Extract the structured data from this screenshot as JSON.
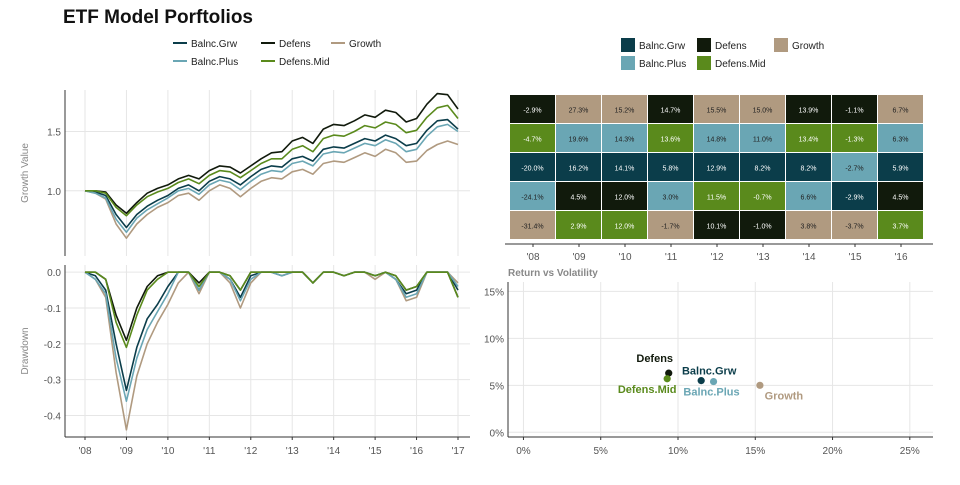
{
  "title": "ETF Model Porftolios",
  "colors": {
    "Balnc.Grw": "#0b3d4a",
    "Defens": "#111a0c",
    "Growth": "#b09a80",
    "Balnc.Plus": "#6aa6b4",
    "Defens.Mid": "#5a8a1c",
    "grid": "#e6e6e6",
    "axis": "#555555"
  },
  "legend_left": [
    "Balnc.Grw",
    "Defens",
    "Growth",
    "Balnc.Plus",
    "Defens.Mid"
  ],
  "legend_right": [
    "Balnc.Grw",
    "Defens",
    "Growth",
    "Balnc.Plus",
    "Defens.Mid"
  ],
  "chart_data": [
    {
      "type": "line",
      "name": "growth",
      "ylabel": "Growth Value",
      "ylim": [
        0.45,
        1.85
      ],
      "yticks": [
        1.0,
        1.5
      ],
      "ytick_labels": [
        "1.0",
        "1.5"
      ],
      "x_start": 2008.0,
      "x_end": 2017.0,
      "series": [
        {
          "name": "Balnc.Grw",
          "values": [
            1.0,
            0.99,
            0.96,
            0.8,
            0.69,
            0.8,
            0.87,
            0.92,
            0.96,
            1.02,
            1.05,
            1.0,
            1.08,
            1.12,
            1.1,
            1.05,
            1.12,
            1.18,
            1.21,
            1.2,
            1.27,
            1.29,
            1.25,
            1.35,
            1.37,
            1.36,
            1.4,
            1.44,
            1.42,
            1.47,
            1.44,
            1.38,
            1.4,
            1.51,
            1.59,
            1.6,
            1.52
          ]
        },
        {
          "name": "Defens",
          "values": [
            1.0,
            1.0,
            0.99,
            0.88,
            0.81,
            0.9,
            0.98,
            1.02,
            1.05,
            1.1,
            1.13,
            1.1,
            1.17,
            1.21,
            1.2,
            1.15,
            1.21,
            1.27,
            1.32,
            1.33,
            1.42,
            1.45,
            1.4,
            1.52,
            1.56,
            1.55,
            1.59,
            1.64,
            1.62,
            1.68,
            1.66,
            1.58,
            1.61,
            1.73,
            1.82,
            1.81,
            1.69
          ]
        },
        {
          "name": "Growth",
          "values": [
            1.0,
            0.98,
            0.93,
            0.72,
            0.6,
            0.72,
            0.8,
            0.86,
            0.9,
            0.96,
            0.98,
            0.92,
            1.0,
            1.05,
            1.02,
            0.95,
            1.02,
            1.08,
            1.11,
            1.1,
            1.16,
            1.18,
            1.14,
            1.23,
            1.25,
            1.24,
            1.28,
            1.32,
            1.29,
            1.35,
            1.32,
            1.24,
            1.25,
            1.34,
            1.39,
            1.42,
            1.39
          ]
        },
        {
          "name": "Balnc.Plus",
          "values": [
            1.0,
            0.98,
            0.94,
            0.76,
            0.65,
            0.77,
            0.84,
            0.89,
            0.94,
            1.0,
            1.02,
            0.97,
            1.05,
            1.09,
            1.07,
            1.01,
            1.08,
            1.14,
            1.17,
            1.16,
            1.23,
            1.25,
            1.21,
            1.31,
            1.33,
            1.32,
            1.36,
            1.4,
            1.38,
            1.43,
            1.4,
            1.33,
            1.35,
            1.46,
            1.54,
            1.56,
            1.5
          ]
        },
        {
          "name": "Defens.Mid",
          "values": [
            1.0,
            1.0,
            0.98,
            0.86,
            0.79,
            0.88,
            0.95,
            0.99,
            1.02,
            1.07,
            1.1,
            1.06,
            1.13,
            1.17,
            1.16,
            1.11,
            1.17,
            1.23,
            1.27,
            1.27,
            1.35,
            1.38,
            1.33,
            1.44,
            1.47,
            1.46,
            1.5,
            1.55,
            1.53,
            1.58,
            1.56,
            1.49,
            1.51,
            1.62,
            1.7,
            1.72,
            1.61
          ]
        }
      ]
    },
    {
      "type": "line",
      "name": "drawdown",
      "ylabel": "Drawdown",
      "ylim": [
        -0.46,
        0.02
      ],
      "yticks": [
        0.0,
        -0.1,
        -0.2,
        -0.3,
        -0.4
      ],
      "ytick_labels": [
        "0.0",
        "-0.1",
        "-0.2",
        "-0.3",
        "-0.4"
      ],
      "x_start": 2008.0,
      "x_end": 2017.0,
      "xticks": [
        "'08",
        "'09",
        "'10",
        "'11",
        "'12",
        "'13",
        "'14",
        "'15",
        "'16",
        "'17"
      ],
      "series": [
        {
          "name": "Balnc.Grw",
          "values": [
            0.0,
            -0.01,
            -0.05,
            -0.2,
            -0.33,
            -0.21,
            -0.13,
            -0.09,
            -0.04,
            0.0,
            0.0,
            -0.05,
            0.0,
            0.0,
            -0.02,
            -0.07,
            -0.01,
            0.0,
            0.0,
            -0.01,
            0.0,
            0.0,
            -0.03,
            0.0,
            0.0,
            -0.01,
            0.0,
            0.0,
            -0.01,
            0.0,
            -0.02,
            -0.06,
            -0.05,
            0.0,
            0.0,
            0.0,
            -0.05
          ]
        },
        {
          "name": "Defens",
          "values": [
            0.0,
            0.0,
            -0.02,
            -0.12,
            -0.19,
            -0.1,
            -0.04,
            -0.01,
            0.0,
            0.0,
            0.0,
            -0.03,
            0.0,
            0.0,
            -0.01,
            -0.05,
            0.0,
            0.0,
            0.0,
            0.0,
            0.0,
            0.0,
            -0.03,
            0.0,
            0.0,
            -0.01,
            0.0,
            0.0,
            -0.01,
            0.0,
            -0.01,
            -0.05,
            -0.04,
            0.0,
            0.0,
            0.0,
            -0.07
          ]
        },
        {
          "name": "Growth",
          "values": [
            0.0,
            -0.02,
            -0.07,
            -0.28,
            -0.44,
            -0.29,
            -0.2,
            -0.14,
            -0.09,
            -0.03,
            0.0,
            -0.06,
            0.0,
            0.0,
            -0.03,
            -0.1,
            -0.03,
            0.0,
            0.0,
            -0.01,
            0.0,
            0.0,
            -0.03,
            0.0,
            0.0,
            -0.01,
            0.0,
            0.0,
            -0.02,
            0.0,
            -0.02,
            -0.08,
            -0.07,
            0.0,
            0.0,
            0.0,
            -0.03
          ]
        },
        {
          "name": "Balnc.Plus",
          "values": [
            0.0,
            -0.02,
            -0.06,
            -0.24,
            -0.36,
            -0.24,
            -0.16,
            -0.11,
            -0.06,
            0.0,
            0.0,
            -0.05,
            0.0,
            0.0,
            -0.02,
            -0.08,
            -0.02,
            0.0,
            0.0,
            -0.01,
            0.0,
            0.0,
            -0.03,
            0.0,
            0.0,
            -0.01,
            0.0,
            0.0,
            -0.01,
            0.0,
            -0.02,
            -0.07,
            -0.06,
            0.0,
            0.0,
            0.0,
            -0.04
          ]
        },
        {
          "name": "Defens.Mid",
          "values": [
            0.0,
            0.0,
            -0.02,
            -0.14,
            -0.21,
            -0.12,
            -0.05,
            -0.02,
            0.0,
            0.0,
            0.0,
            -0.04,
            0.0,
            0.0,
            -0.01,
            -0.05,
            0.0,
            0.0,
            0.0,
            0.0,
            0.0,
            0.0,
            -0.03,
            0.0,
            0.0,
            -0.01,
            0.0,
            0.0,
            -0.01,
            0.0,
            -0.01,
            -0.05,
            -0.04,
            0.0,
            0.0,
            0.0,
            -0.07
          ]
        }
      ]
    },
    {
      "type": "heatmap",
      "name": "annual-returns",
      "columns": [
        "'08",
        "'09",
        "'10",
        "'11",
        "'12",
        "'13",
        "'14",
        "'15",
        "'16"
      ],
      "rows": [
        [
          {
            "v": "-2.9%",
            "s": "Defens"
          },
          {
            "v": "27.3%",
            "s": "Growth"
          },
          {
            "v": "15.2%",
            "s": "Growth"
          },
          {
            "v": "14.7%",
            "s": "Defens"
          },
          {
            "v": "15.5%",
            "s": "Growth"
          },
          {
            "v": "15.0%",
            "s": "Growth"
          },
          {
            "v": "13.9%",
            "s": "Defens"
          },
          {
            "v": "-1.1%",
            "s": "Defens"
          },
          {
            "v": "6.7%",
            "s": "Growth"
          }
        ],
        [
          {
            "v": "-4.7%",
            "s": "Defens.Mid"
          },
          {
            "v": "19.6%",
            "s": "Balnc.Plus"
          },
          {
            "v": "14.3%",
            "s": "Balnc.Plus"
          },
          {
            "v": "13.6%",
            "s": "Defens.Mid"
          },
          {
            "v": "14.8%",
            "s": "Balnc.Plus"
          },
          {
            "v": "11.0%",
            "s": "Balnc.Plus"
          },
          {
            "v": "13.4%",
            "s": "Defens.Mid"
          },
          {
            "v": "-1.3%",
            "s": "Defens.Mid"
          },
          {
            "v": "6.3%",
            "s": "Balnc.Plus"
          }
        ],
        [
          {
            "v": "-20.0%",
            "s": "Balnc.Grw"
          },
          {
            "v": "16.2%",
            "s": "Balnc.Grw"
          },
          {
            "v": "14.1%",
            "s": "Balnc.Grw"
          },
          {
            "v": "5.8%",
            "s": "Balnc.Grw"
          },
          {
            "v": "12.9%",
            "s": "Balnc.Grw"
          },
          {
            "v": "8.2%",
            "s": "Balnc.Grw"
          },
          {
            "v": "8.2%",
            "s": "Balnc.Grw"
          },
          {
            "v": "-2.7%",
            "s": "Balnc.Plus"
          },
          {
            "v": "5.9%",
            "s": "Balnc.Grw"
          }
        ],
        [
          {
            "v": "-24.1%",
            "s": "Balnc.Plus"
          },
          {
            "v": "4.5%",
            "s": "Defens"
          },
          {
            "v": "12.0%",
            "s": "Defens"
          },
          {
            "v": "3.0%",
            "s": "Balnc.Plus"
          },
          {
            "v": "11.5%",
            "s": "Defens.Mid"
          },
          {
            "v": "-0.7%",
            "s": "Defens.Mid"
          },
          {
            "v": "6.6%",
            "s": "Balnc.Plus"
          },
          {
            "v": "-2.9%",
            "s": "Balnc.Grw"
          },
          {
            "v": "4.5%",
            "s": "Defens"
          }
        ],
        [
          {
            "v": "-31.4%",
            "s": "Growth"
          },
          {
            "v": "2.9%",
            "s": "Defens.Mid"
          },
          {
            "v": "12.0%",
            "s": "Defens.Mid"
          },
          {
            "v": "-1.7%",
            "s": "Growth"
          },
          {
            "v": "10.1%",
            "s": "Defens"
          },
          {
            "v": "-1.0%",
            "s": "Defens"
          },
          {
            "v": "3.8%",
            "s": "Growth"
          },
          {
            "v": "-3.7%",
            "s": "Growth"
          },
          {
            "v": "3.7%",
            "s": "Defens.Mid"
          }
        ]
      ]
    },
    {
      "type": "scatter",
      "name": "return-vs-volatility",
      "title": "Return vs Volatility",
      "xlim": [
        -0.01,
        0.265
      ],
      "ylim": [
        -0.005,
        0.16
      ],
      "xticks": [
        0,
        0.05,
        0.1,
        0.15,
        0.2,
        0.25
      ],
      "xtick_labels": [
        "0%",
        "5%",
        "10%",
        "15%",
        "20%",
        "25%"
      ],
      "yticks": [
        0,
        0.05,
        0.1,
        0.15
      ],
      "ytick_labels": [
        "0%",
        "5%",
        "10%",
        "15%"
      ],
      "points": [
        {
          "name": "Defens",
          "label": "Defens",
          "x": 0.094,
          "y": 0.063
        },
        {
          "name": "Defens.Mid",
          "label": "Defens.Mid",
          "x": 0.093,
          "y": 0.057
        },
        {
          "name": "Balnc.Grw",
          "label": "Balnc.Grw",
          "x": 0.115,
          "y": 0.055
        },
        {
          "name": "Balnc.Plus",
          "label": "Balnc.Plus",
          "x": 0.123,
          "y": 0.054
        },
        {
          "name": "Growth",
          "label": "Growth",
          "x": 0.153,
          "y": 0.05
        }
      ]
    }
  ]
}
